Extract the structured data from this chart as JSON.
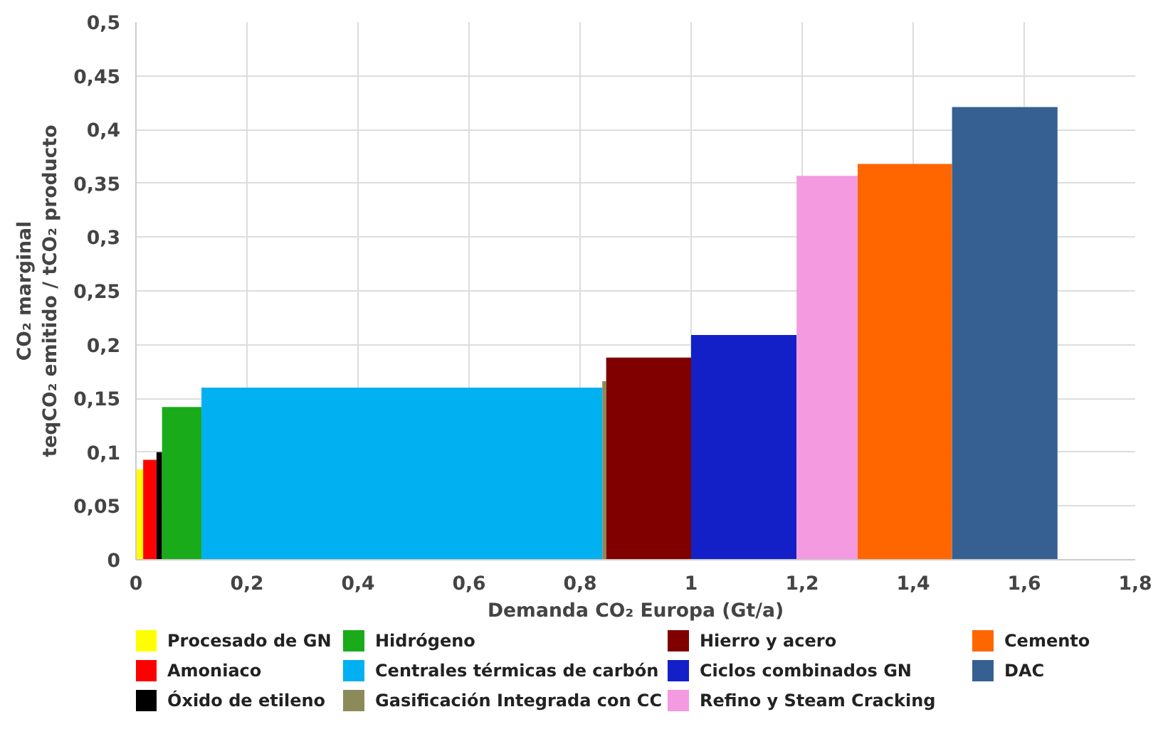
{
  "chart_data": {
    "type": "area",
    "xlabel": "Demanda CO₂ Europa (Gt/a)",
    "ylabel": "CO₂ marginal\nteqCO₂ emitido / tCO₂ producto",
    "xlim": [
      0,
      1.8
    ],
    "ylim": [
      0,
      0.5
    ],
    "xticks": [
      0,
      {
        "value": 0.2,
        "label": "0,2"
      },
      {
        "value": 0.4,
        "label": "0,4"
      },
      {
        "value": 0.6,
        "label": "0,6"
      },
      {
        "value": 0.8,
        "label": "0,8"
      },
      1,
      {
        "value": 1.2,
        "label": "1,2"
      },
      {
        "value": 1.4,
        "label": "1,4"
      },
      {
        "value": 1.6,
        "label": "1,6"
      },
      {
        "value": 1.8,
        "label": "1,8"
      }
    ],
    "yticks": [
      0,
      {
        "value": 0.05,
        "label": "0,05"
      },
      {
        "value": 0.1,
        "label": "0,1"
      },
      {
        "value": 0.15,
        "label": "0,15"
      },
      {
        "value": 0.2,
        "label": "0,2"
      },
      {
        "value": 0.25,
        "label": "0,25"
      },
      {
        "value": 0.3,
        "label": "0,3"
      },
      {
        "value": 0.35,
        "label": "0,35"
      },
      {
        "value": 0.4,
        "label": "0,4"
      },
      {
        "value": 0.45,
        "label": "0,45"
      },
      {
        "value": 0.5,
        "label": "0,5"
      }
    ],
    "grid": true,
    "legend": "bottom",
    "series": [
      {
        "name": "Procesado de GN",
        "color": "#ffff00",
        "x": [
          0,
          0.013
        ],
        "values": [
          0.084,
          0.084
        ]
      },
      {
        "name": "Amoniaco",
        "color": "#ff0000",
        "x": [
          0.013,
          0.037
        ],
        "values": [
          0.093,
          0.093
        ]
      },
      {
        "name": "Óxido de etileno",
        "color": "#000000",
        "x": [
          0.037,
          0.047
        ],
        "values": [
          0.1,
          0.1
        ]
      },
      {
        "name": "Hidrógeno",
        "color": "#1aab1a",
        "x": [
          0.047,
          0.118
        ],
        "values": [
          0.142,
          0.142
        ]
      },
      {
        "name": "Centrales térmicas de carbón",
        "color": "#00b0f0",
        "x": [
          0.118,
          0.84
        ],
        "values": [
          0.16,
          0.16
        ]
      },
      {
        "name": "Gasificación Integrada con CC",
        "color": "#8c8a58",
        "x": [
          0.84,
          0.847
        ],
        "values": [
          0.166,
          0.166
        ]
      },
      {
        "name": "Hierro y acero",
        "color": "#800000",
        "x": [
          0.847,
          1.0
        ],
        "values": [
          0.188,
          0.188
        ]
      },
      {
        "name": "Ciclos combinados GN",
        "color": "#1320c8",
        "x": [
          1.0,
          1.19
        ],
        "values": [
          0.209,
          0.209
        ]
      },
      {
        "name": "Refino y Steam Cracking",
        "color": "#f49ae0",
        "x": [
          1.19,
          1.3
        ],
        "values": [
          0.357,
          0.357
        ]
      },
      {
        "name": "Cemento",
        "color": "#ff6600",
        "x": [
          1.3,
          1.47
        ],
        "values": [
          0.368,
          0.368
        ]
      },
      {
        "name": "DAC",
        "color": "#376092",
        "x": [
          1.47,
          1.66
        ],
        "values": [
          0.421,
          0.421
        ]
      }
    ]
  }
}
